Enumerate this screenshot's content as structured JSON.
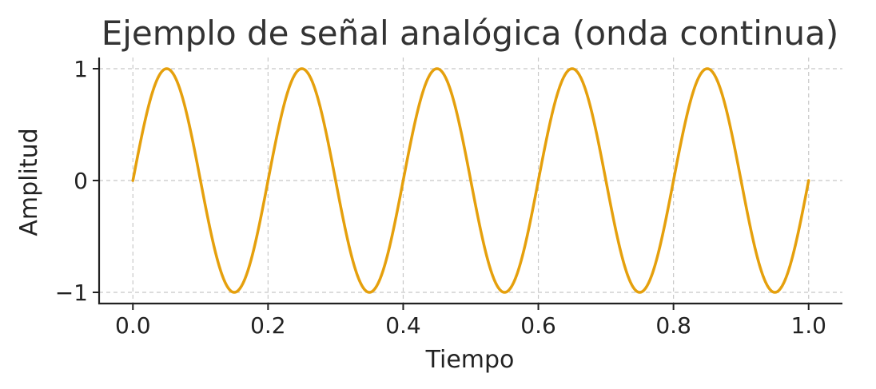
{
  "chart_data": {
    "type": "line",
    "title": "Ejemplo de señal analógica (onda continua)",
    "xlabel": "Tiempo",
    "ylabel": "Amplitud",
    "xlim": [
      -0.05,
      1.05
    ],
    "ylim": [
      -1.1,
      1.1
    ],
    "xticks": [
      0.0,
      0.2,
      0.4,
      0.6,
      0.8,
      1.0
    ],
    "xtick_labels": [
      "0.0",
      "0.2",
      "0.4",
      "0.6",
      "0.8",
      "1.0"
    ],
    "yticks": [
      -1,
      0,
      1
    ],
    "ytick_labels": [
      "−1",
      "0",
      "1"
    ],
    "grid": true,
    "legend": "none",
    "series": [
      {
        "function": "sin(2*pi*5*t)",
        "frequency": 5,
        "amplitude": 1,
        "t_range": [
          0,
          1
        ],
        "color": "#E5A00D"
      }
    ]
  }
}
